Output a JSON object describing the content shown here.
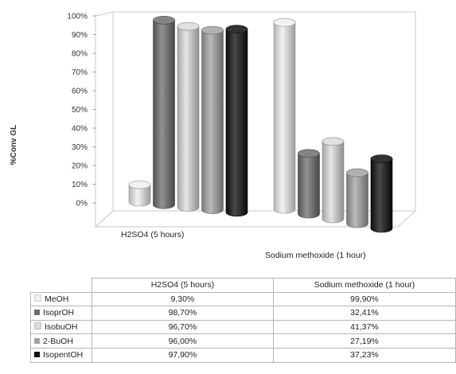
{
  "chart_data": {
    "type": "bar",
    "style": "3d-cylinder",
    "title": "",
    "ylabel": "%Conv GL",
    "xlabel": "",
    "ylim": [
      0,
      100
    ],
    "y_ticks": [
      "0%",
      "10%",
      "20%",
      "30%",
      "40%",
      "50%",
      "60%",
      "70%",
      "80%",
      "90%",
      "100%"
    ],
    "grid": false,
    "legend": "data-table-below",
    "categories": [
      "H2SO4 (5 hours)",
      "Sodium methoxide (1 hour)"
    ],
    "series": [
      {
        "name": "MeOH",
        "color": "#f0f0f0",
        "values": [
          9.3,
          99.9
        ],
        "labels": [
          "9,30%",
          "99,90%"
        ]
      },
      {
        "name": "IsoprOH",
        "color": "#6e6e6e",
        "values": [
          98.7,
          32.41
        ],
        "labels": [
          "98,70%",
          "32,41%"
        ]
      },
      {
        "name": "IsobuOH",
        "color": "#dcdcdc",
        "values": [
          96.7,
          41.37
        ],
        "labels": [
          "96,70%",
          "41,37%"
        ]
      },
      {
        "name": "2-BuOH",
        "color": "#a3a3a3",
        "values": [
          96.0,
          27.19
        ],
        "labels": [
          "96,00%",
          "27,19%"
        ]
      },
      {
        "name": "IsopentOH",
        "color": "#0e0e0e",
        "values": [
          97.9,
          37.23
        ],
        "labels": [
          "97,90%",
          "37,23%"
        ]
      }
    ]
  }
}
